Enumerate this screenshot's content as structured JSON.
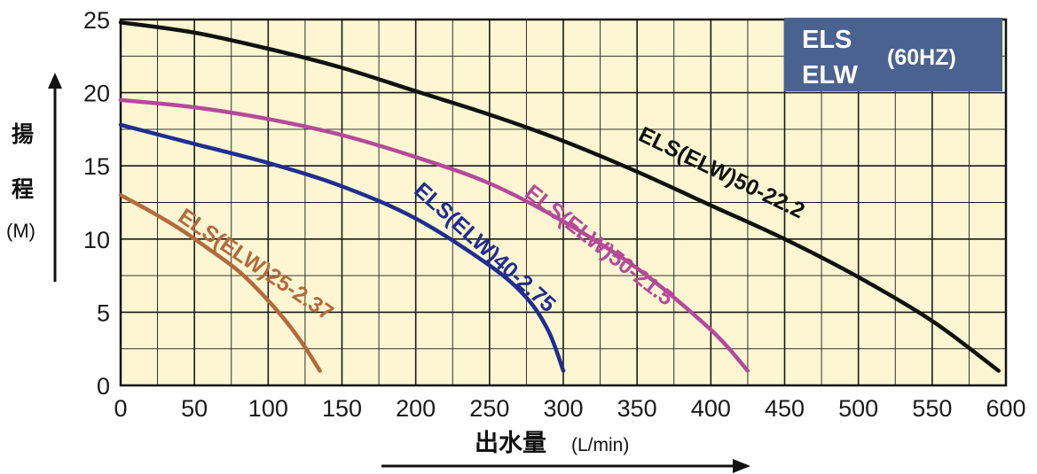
{
  "chart_data": {
    "type": "line",
    "xlabel_cjk": "出水量",
    "xlabel_unit": "(L/min)",
    "ylabel_lines": [
      "揚",
      "程"
    ],
    "ylabel_unit": "(M)",
    "xlim": [
      0,
      600
    ],
    "ylim": [
      0,
      25
    ],
    "x_ticks": [
      "0",
      "50",
      "100",
      "150",
      "200",
      "250",
      "300",
      "350",
      "400",
      "450",
      "500",
      "550",
      "600"
    ],
    "y_ticks": [
      "0",
      "5",
      "10",
      "15",
      "20",
      "25"
    ],
    "grid": true,
    "background_color": "#fcf6d2",
    "grid_color": "#1a1a1a",
    "legend_box": {
      "lines": [
        "ELS",
        "ELW"
      ],
      "note": "(60HZ)",
      "color": "#4a6290"
    },
    "series": [
      {
        "name": "ELS(ELW)25-2.37",
        "color": "#b26a3e",
        "x": [
          0,
          20,
          40,
          60,
          80,
          100,
          115,
          125,
          135
        ],
        "y": [
          13.0,
          11.9,
          10.7,
          9.3,
          7.8,
          5.8,
          4.0,
          2.6,
          1.0
        ]
      },
      {
        "name": "ELS(ELW)40-2.75",
        "color": "#1f2e91",
        "x": [
          0,
          50,
          100,
          150,
          200,
          250,
          275,
          290,
          300
        ],
        "y": [
          17.8,
          16.5,
          15.2,
          13.6,
          11.4,
          8.2,
          6.0,
          3.7,
          1.0
        ]
      },
      {
        "name": "ELS(ELW)50-21.5",
        "color": "#b44a9a",
        "x": [
          0,
          50,
          100,
          150,
          200,
          250,
          300,
          350,
          400,
          425
        ],
        "y": [
          19.5,
          19.0,
          18.2,
          17.1,
          15.6,
          13.8,
          11.2,
          8.0,
          3.8,
          1.0
        ]
      },
      {
        "name": "ELS(ELW)50-22.2",
        "color": "#111111",
        "x": [
          0,
          50,
          100,
          150,
          200,
          250,
          300,
          350,
          400,
          450,
          500,
          550,
          595
        ],
        "y": [
          24.8,
          24.1,
          23.0,
          21.7,
          20.1,
          18.5,
          16.7,
          14.6,
          12.3,
          10.0,
          7.4,
          4.4,
          1.0
        ]
      }
    ],
    "annotations": [
      "ELS(ELW)25-2.37",
      "ELS(ELW)40-2.75",
      "ELS(ELW)50-21.5",
      "ELS(ELW)50-22.2"
    ]
  }
}
